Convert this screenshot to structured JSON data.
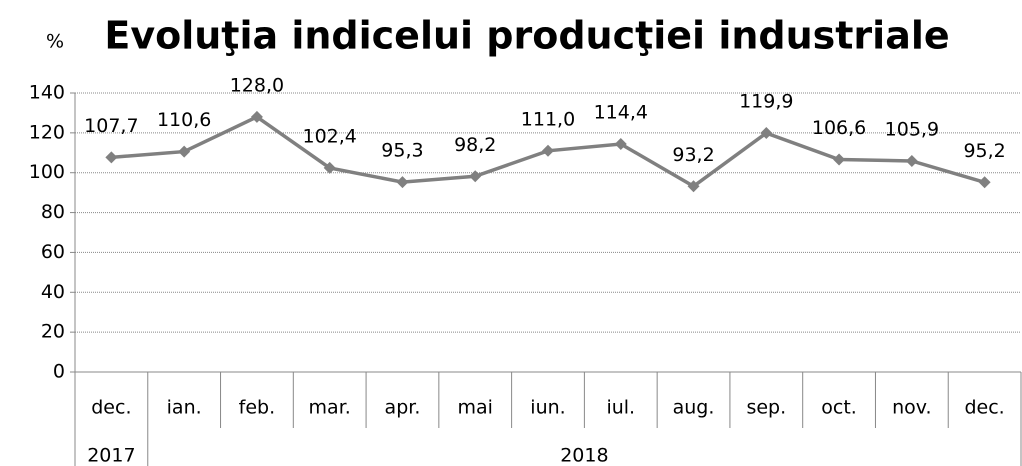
{
  "chart_data": {
    "type": "line",
    "title": "Evoluţia indicelui producţiei industriale",
    "y_label": "%",
    "categories": [
      "dec.",
      "ian.",
      "feb.",
      "mar.",
      "apr.",
      "mai",
      "iun.",
      "iul.",
      "aug.",
      "sep.",
      "oct.",
      "nov.",
      "dec."
    ],
    "years": [
      "2017",
      "2018",
      null,
      null,
      null,
      null,
      null,
      null,
      null,
      null,
      null,
      null,
      null
    ],
    "series": [
      {
        "name": null,
        "color": "#808080",
        "values": [
          107.7,
          110.6,
          128.0,
          102.4,
          95.3,
          98.2,
          111.0,
          114.4,
          93.2,
          119.9,
          106.6,
          105.9,
          95.2
        ],
        "value_labels": [
          "107,7",
          "110,6",
          "128,0",
          "102,4",
          "95,3",
          "98,2",
          "111,0",
          "114,4",
          "93,2",
          "119,9",
          "106,6",
          "105,9",
          "95,2"
        ]
      }
    ],
    "ylim": [
      0,
      140
    ],
    "yticks": [
      0,
      20,
      40,
      60,
      80,
      100,
      120,
      140
    ],
    "grid": true
  }
}
